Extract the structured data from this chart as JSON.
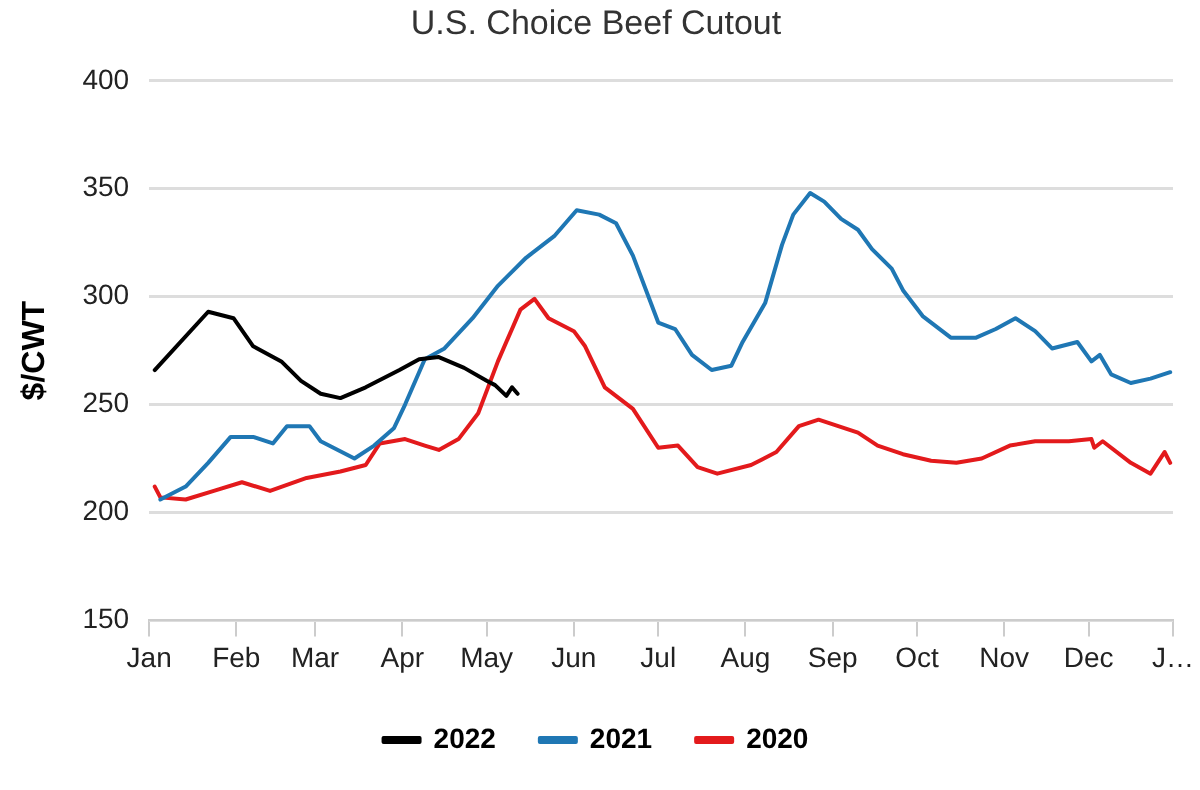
{
  "chart_data": {
    "type": "line",
    "title": "U.S. Choice Beef Cutout",
    "ylabel": "$/CWT",
    "xlim": [
      "--01-01",
      "--12-31"
    ],
    "xticks": [
      {
        "value": "--01-01",
        "label": "Jan"
      },
      {
        "value": "--02-01",
        "label": "Feb"
      },
      {
        "value": "--03-01",
        "label": "Mar"
      },
      {
        "value": "--04-01",
        "label": "Apr"
      },
      {
        "value": "--05-01",
        "label": "May"
      },
      {
        "value": "--06-01",
        "label": "Jun"
      },
      {
        "value": "--07-01",
        "label": "Jul"
      },
      {
        "value": "--08-01",
        "label": "Aug"
      },
      {
        "value": "--09-01",
        "label": "Sep"
      },
      {
        "value": "--10-01",
        "label": "Oct"
      },
      {
        "value": "--11-01",
        "label": "Nov"
      },
      {
        "value": "--12-01",
        "label": "Dec"
      },
      {
        "value": "--12-31",
        "label": "J…"
      }
    ],
    "ylim": [
      150,
      400
    ],
    "yticks": [
      150,
      200,
      250,
      300,
      350,
      400
    ],
    "grid": "y",
    "legend": "bottom",
    "marker": "none",
    "line_style": "solid",
    "series": [
      {
        "name": "2022",
        "color": "#000000",
        "x": [
          "--01-03",
          "--01-22",
          "--01-31",
          "--02-07",
          "--02-17",
          "--02-24",
          "--03-03",
          "--03-10",
          "--03-19",
          "--03-31",
          "--04-07",
          "--04-14",
          "--04-23",
          "--05-01",
          "--05-04",
          "--05-08",
          "--05-10",
          "--05-12"
        ],
        "values": [
          266,
          293,
          290,
          277,
          270,
          261,
          255,
          253,
          258,
          266,
          271,
          272,
          267,
          261,
          259,
          254,
          258,
          255
        ]
      },
      {
        "name": "2021",
        "color": "#1f77b4",
        "x": [
          "--01-05",
          "--01-14",
          "--01-22",
          "--01-30",
          "--02-07",
          "--02-14",
          "--02-19",
          "--02-27",
          "--03-03",
          "--03-15",
          "--03-22",
          "--03-29",
          "--04-02",
          "--04-09",
          "--04-16",
          "--04-26",
          "--05-05",
          "--05-15",
          "--05-25",
          "--06-02",
          "--06-10",
          "--06-16",
          "--06-22",
          "--07-01",
          "--07-07",
          "--07-13",
          "--07-20",
          "--07-27",
          "--07-31",
          "--08-08",
          "--08-14",
          "--08-18",
          "--08-24",
          "--08-29",
          "--09-04",
          "--09-10",
          "--09-15",
          "--09-22",
          "--09-26",
          "--10-03",
          "--10-13",
          "--10-22",
          "--10-29",
          "--11-05",
          "--11-12",
          "--11-18",
          "--11-27",
          "--12-02",
          "--12-05",
          "--12-09",
          "--12-16",
          "--12-23",
          "--12-30"
        ],
        "values": [
          206,
          212,
          223,
          235,
          235,
          232,
          240,
          240,
          233,
          225,
          231,
          239,
          250,
          271,
          276,
          290,
          305,
          318,
          328,
          340,
          338,
          334,
          319,
          288,
          285,
          273,
          266,
          268,
          279,
          297,
          324,
          338,
          348,
          344,
          336,
          331,
          322,
          313,
          303,
          291,
          281,
          281,
          285,
          290,
          284,
          276,
          279,
          270,
          273,
          264,
          260,
          262,
          265
        ]
      },
      {
        "name": "2020",
        "color": "#e31a1c",
        "x": [
          "--01-03",
          "--01-05",
          "--01-14",
          "--01-24",
          "--02-03",
          "--02-13",
          "--02-26",
          "--03-10",
          "--03-19",
          "--03-24",
          "--04-02",
          "--04-09",
          "--04-14",
          "--04-21",
          "--04-28",
          "--05-05",
          "--05-13",
          "--05-18",
          "--05-23",
          "--06-01",
          "--06-05",
          "--06-12",
          "--06-22",
          "--07-01",
          "--07-08",
          "--07-15",
          "--07-22",
          "--08-03",
          "--08-12",
          "--08-20",
          "--08-27",
          "--09-03",
          "--09-10",
          "--09-17",
          "--09-26",
          "--10-06",
          "--10-15",
          "--10-24",
          "--11-03",
          "--11-12",
          "--11-24",
          "--12-02",
          "--12-03",
          "--12-06",
          "--12-16",
          "--12-23",
          "--12-28",
          "--12-30"
        ],
        "values": [
          212,
          207,
          206,
          210,
          214,
          210,
          216,
          219,
          222,
          232,
          234,
          231,
          229,
          234,
          246,
          270,
          294,
          299,
          290,
          284,
          277,
          258,
          248,
          230,
          231,
          221,
          218,
          222,
          228,
          240,
          243,
          240,
          237,
          231,
          227,
          224,
          223,
          225,
          231,
          233,
          233,
          234,
          230,
          233,
          223,
          218,
          228,
          223
        ]
      }
    ]
  }
}
